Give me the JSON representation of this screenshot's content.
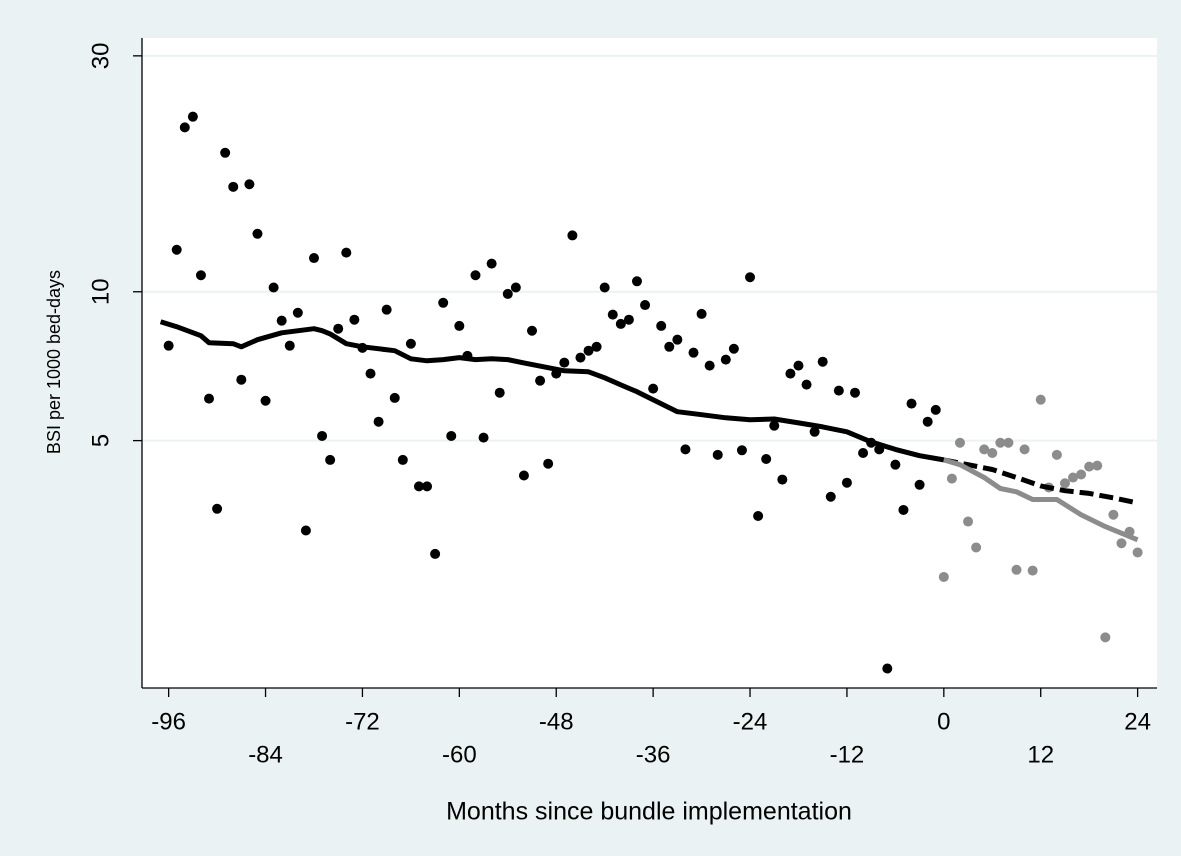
{
  "chart_data": {
    "type": "scatter",
    "xlabel": "Months since bundle implementation",
    "ylabel": "BSI per 1000 bed-days",
    "xlim": [
      -99.3,
      26.4
    ],
    "ylim": [
      1.58,
      32.6
    ],
    "log_y": true,
    "grid": true,
    "xticks": [
      -96,
      -84,
      -72,
      -60,
      -48,
      -36,
      -24,
      -12,
      0,
      12,
      24
    ],
    "yticks": [
      5,
      10,
      30
    ],
    "series": [
      {
        "style": "points",
        "color": "#000000",
        "x": [
          -96,
          -95,
          -94,
          -93,
          -92,
          -91,
          -90,
          -89,
          -88,
          -87,
          -86,
          -85,
          -84,
          -83,
          -82,
          -81,
          -80,
          -79,
          -78,
          -77,
          -76,
          -75,
          -74,
          -73,
          -72,
          -71,
          -70,
          -69,
          -68,
          -67,
          -66,
          -65,
          -64,
          -63,
          -62,
          -61,
          -60,
          -59,
          -58,
          -57,
          -56,
          -55,
          -54,
          -53,
          -52,
          -51,
          -50,
          -49,
          -48,
          -47,
          -46,
          -45,
          -44,
          -43,
          -42,
          -41,
          -40,
          -39,
          -38,
          -37,
          -36,
          -35,
          -34,
          -33,
          -32,
          -31,
          -30,
          -29,
          -28,
          -27,
          -26,
          -25,
          -24,
          -23,
          -22,
          -21,
          -20,
          -19,
          -18,
          -17,
          -16,
          -15,
          -14,
          -13,
          -12,
          -11,
          -10,
          -9,
          -8,
          -7,
          -6,
          -5,
          -4,
          -3,
          -2,
          -1
        ],
        "values": [
          7.78,
          12.16,
          21.5,
          22.6,
          10.8,
          6.08,
          3.64,
          19.1,
          16.3,
          6.64,
          16.5,
          13.1,
          6.02,
          10.2,
          8.74,
          7.78,
          9.07,
          3.29,
          11.7,
          5.11,
          4.57,
          8.42,
          12.0,
          8.78,
          7.7,
          6.83,
          5.46,
          9.2,
          6.1,
          4.57,
          7.85,
          4.04,
          4.04,
          2.95,
          9.5,
          5.11,
          8.53,
          7.42,
          10.8,
          5.07,
          11.4,
          6.25,
          9.9,
          10.2,
          4.25,
          8.34,
          6.61,
          4.49,
          6.83,
          7.19,
          13.0,
          7.36,
          7.6,
          7.74,
          10.2,
          8.99,
          8.61,
          8.78,
          10.5,
          9.4,
          6.37,
          8.53,
          7.74,
          8.0,
          4.8,
          7.53,
          9.02,
          7.09,
          4.68,
          7.29,
          7.67,
          4.78,
          10.7,
          3.52,
          4.59,
          5.36,
          4.17,
          6.83,
          7.09,
          6.49,
          5.21,
          7.22,
          3.85,
          6.31,
          4.11,
          6.25,
          4.72,
          4.95,
          4.8,
          1.73,
          4.47,
          3.62,
          5.94,
          4.07,
          5.46,
          5.77
        ]
      },
      {
        "style": "points",
        "color": "#8c8c8c",
        "x": [
          0,
          1,
          2,
          3,
          4,
          5,
          6,
          7,
          8,
          9,
          10,
          11,
          12,
          13,
          14,
          15,
          16,
          17,
          18,
          19,
          20,
          21,
          22,
          23,
          24
        ],
        "values": [
          2.65,
          4.19,
          4.95,
          3.43,
          3.04,
          4.8,
          4.72,
          4.95,
          4.95,
          2.74,
          4.8,
          2.73,
          6.05,
          4.02,
          4.68,
          4.1,
          4.21,
          4.27,
          4.43,
          4.45,
          2.0,
          3.54,
          3.1,
          3.27,
          2.97
        ]
      },
      {
        "style": "line",
        "color": "#000000",
        "x": [
          -97,
          -95,
          -92,
          -91,
          -88,
          -87,
          -85,
          -82,
          -78,
          -77,
          -76,
          -74,
          -72,
          -68,
          -66,
          -64,
          -62,
          -60,
          -58,
          -56,
          -54,
          -52,
          -49,
          -47,
          -44,
          -42,
          -40,
          -38,
          -36,
          -33,
          -30,
          -27,
          -24,
          -21,
          -18,
          -15,
          -12,
          -9,
          -6,
          -3,
          0
        ],
        "values": [
          8.7,
          8.5,
          8.15,
          7.89,
          7.85,
          7.74,
          8.0,
          8.26,
          8.42,
          8.34,
          8.22,
          7.85,
          7.74,
          7.6,
          7.32,
          7.25,
          7.29,
          7.36,
          7.29,
          7.32,
          7.29,
          7.18,
          7.02,
          6.92,
          6.89,
          6.7,
          6.48,
          6.28,
          6.05,
          5.72,
          5.64,
          5.56,
          5.51,
          5.53,
          5.43,
          5.33,
          5.21,
          4.97,
          4.8,
          4.66,
          4.57
        ]
      },
      {
        "style": "dashed",
        "color": "#000000",
        "x": [
          0,
          3,
          6,
          9,
          12,
          15,
          18,
          21,
          24
        ],
        "values": [
          4.57,
          4.47,
          4.37,
          4.21,
          4.05,
          3.96,
          3.91,
          3.83,
          3.74
        ]
      },
      {
        "style": "line",
        "color": "#8c8c8c",
        "x": [
          0,
          2,
          5,
          7,
          9,
          11,
          14,
          17,
          20,
          24
        ],
        "values": [
          4.57,
          4.47,
          4.21,
          4.0,
          3.94,
          3.8,
          3.8,
          3.54,
          3.35,
          3.15
        ]
      }
    ]
  }
}
